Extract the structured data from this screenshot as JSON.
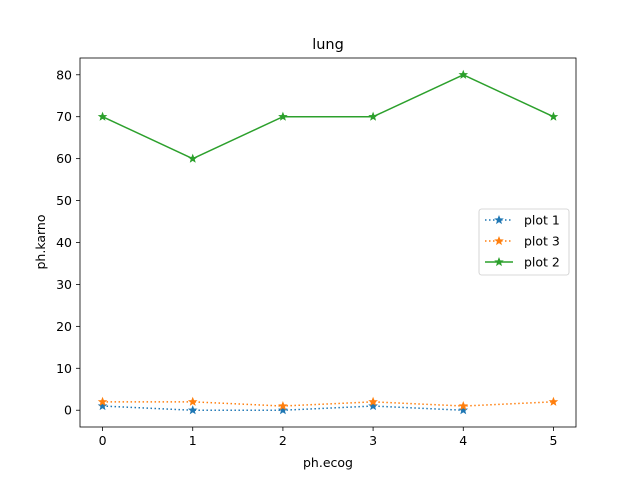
{
  "chart_data": {
    "type": "line",
    "title": "lung",
    "xlabel": "ph.ecog",
    "ylabel": "ph.karno",
    "xlim": [
      -0.25,
      5.25
    ],
    "ylim": [
      -4,
      84
    ],
    "xticks": [
      0,
      1,
      2,
      3,
      4,
      5
    ],
    "yticks": [
      0,
      10,
      20,
      30,
      40,
      50,
      60,
      70,
      80
    ],
    "grid": false,
    "legend_position": "center-right",
    "series": [
      {
        "name": "plot 1",
        "color": "#1f77b4",
        "linestyle": "dotted",
        "marker": "star",
        "x": [
          0,
          1,
          2,
          3,
          4
        ],
        "y": [
          1,
          0,
          0,
          1,
          0
        ]
      },
      {
        "name": "plot 3",
        "color": "#ff7f0e",
        "linestyle": "dotted",
        "marker": "star",
        "x": [
          0,
          1,
          2,
          3,
          4,
          5
        ],
        "y": [
          2,
          2,
          1,
          2,
          1,
          2
        ]
      },
      {
        "name": "plot 2",
        "color": "#2ca02c",
        "linestyle": "solid",
        "marker": "star",
        "x": [
          0,
          1,
          2,
          3,
          4,
          5
        ],
        "y": [
          70,
          60,
          70,
          70,
          80,
          70
        ]
      }
    ]
  }
}
